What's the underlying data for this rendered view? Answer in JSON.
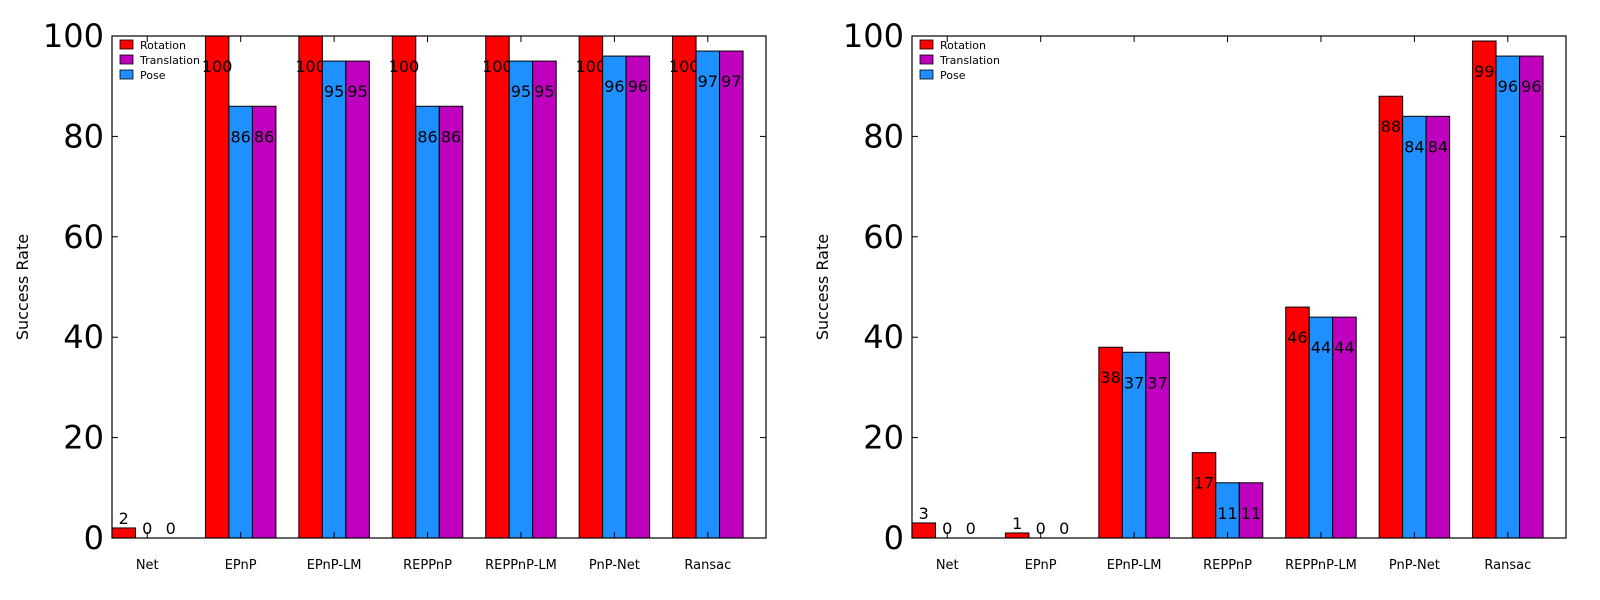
{
  "chart_data": [
    {
      "type": "bar",
      "title": "",
      "xlabel": "",
      "ylabel": "Success Rate",
      "ylim": [
        0,
        100
      ],
      "yticks": [
        0,
        20,
        40,
        60,
        80,
        100
      ],
      "categories": [
        "Net",
        "EPnP",
        "EPnP-LM",
        "REPPnP",
        "REPPnP-LM",
        "PnP-Net",
        "Ransac"
      ],
      "series": [
        {
          "name": "Rotation",
          "color": "#ff0000",
          "values": [
            2,
            100,
            100,
            100,
            100,
            100,
            100
          ]
        },
        {
          "name": "Pose",
          "color": "#1e90ff",
          "values": [
            0,
            86,
            95,
            86,
            95,
            96,
            97
          ]
        },
        {
          "name": "Translation",
          "color": "#bf00bf",
          "values": [
            0,
            86,
            95,
            86,
            95,
            96,
            97
          ]
        }
      ],
      "legend_order": [
        "Rotation",
        "Translation",
        "Pose"
      ],
      "legend_position": "top-left",
      "grid": false
    },
    {
      "type": "bar",
      "title": "",
      "xlabel": "",
      "ylabel": "Success Rate",
      "ylim": [
        0,
        100
      ],
      "yticks": [
        0,
        20,
        40,
        60,
        80,
        100
      ],
      "categories": [
        "Net",
        "EPnP",
        "EPnP-LM",
        "REPPnP",
        "REPPnP-LM",
        "PnP-Net",
        "Ransac"
      ],
      "series": [
        {
          "name": "Rotation",
          "color": "#ff0000",
          "values": [
            3,
            1,
            38,
            17,
            46,
            88,
            99
          ]
        },
        {
          "name": "Pose",
          "color": "#1e90ff",
          "values": [
            0,
            0,
            37,
            11,
            44,
            84,
            96
          ]
        },
        {
          "name": "Translation",
          "color": "#bf00bf",
          "values": [
            0,
            0,
            37,
            11,
            44,
            84,
            96
          ]
        }
      ],
      "legend_order": [
        "Rotation",
        "Translation",
        "Pose"
      ],
      "legend_position": "top-left",
      "grid": false
    }
  ]
}
